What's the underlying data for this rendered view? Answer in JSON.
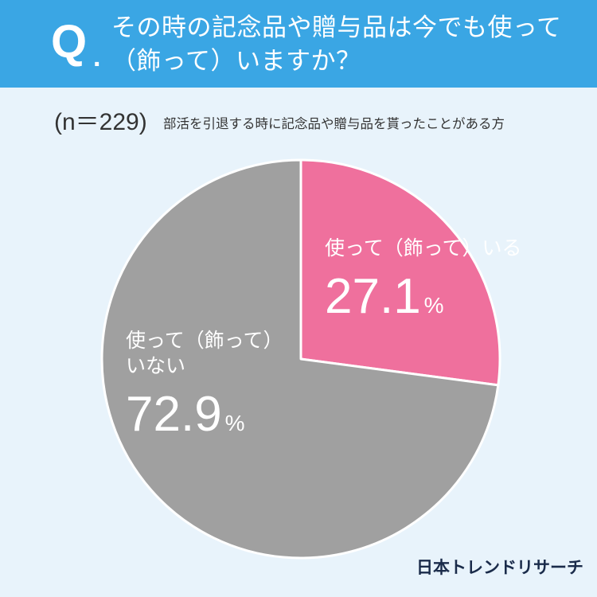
{
  "header": {
    "q_letter": "Q",
    "q_dot": ".",
    "question_line1": "その時の記念品や贈与品は今でも使って",
    "question_line2": "（飾って）いますか？",
    "bg_color": "#3aa6e4"
  },
  "sample": {
    "count_label": "(n＝229)",
    "description": "部活を引退する時に記念品や贈与品を貰ったことがある方"
  },
  "chart_data": {
    "type": "pie",
    "categories": [
      "使って（飾って）いる",
      "使って（飾って）いない"
    ],
    "values": [
      27.1,
      72.9
    ],
    "unit": "%",
    "colors": [
      "#ef709d",
      "#a0a0a0"
    ],
    "labels": [
      {
        "text": "使って（飾って）いる",
        "value": "27.1",
        "unit": "%"
      },
      {
        "text_line1": "使って（飾って）",
        "text_line2": "いない",
        "value": "72.9",
        "unit": "%"
      }
    ]
  },
  "brand": "日本トレンドリサーチ"
}
